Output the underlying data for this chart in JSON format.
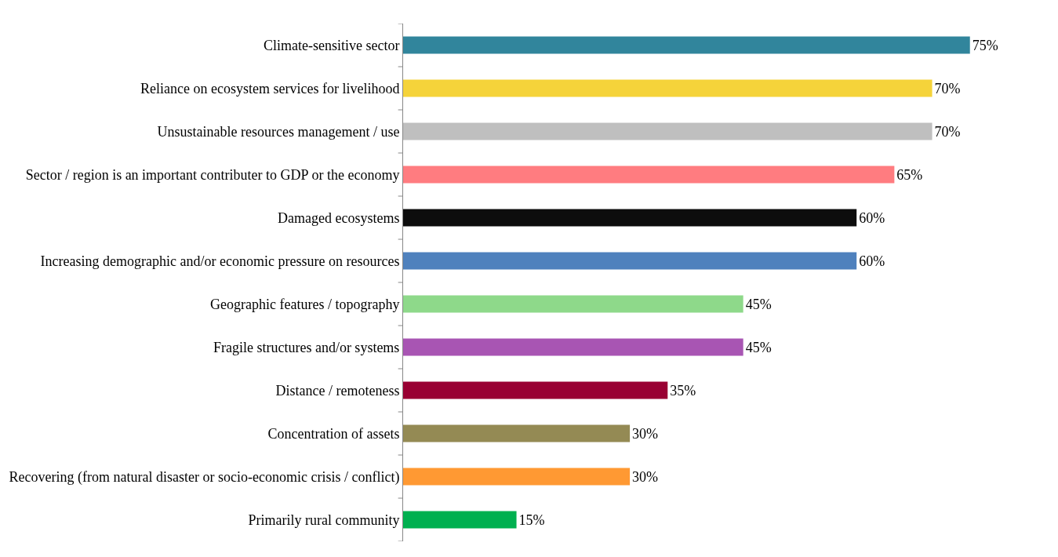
{
  "chart_data": {
    "type": "bar",
    "orientation": "horizontal",
    "categories": [
      "Climate-sensitive sector",
      "Reliance on ecosystem services for livelihood",
      "Unsustainable resources management / use",
      "Sector / region is an important contributer to GDP or the economy",
      "Damaged ecosystems",
      "Increasing demographic and/or economic pressure on resources",
      "Geographic features / topography",
      "Fragile structures and/or systems",
      "Distance / remoteness",
      "Concentration of assets",
      "Recovering (from natural disaster or socio-economic crisis / conflict)",
      "Primarily rural community"
    ],
    "values": [
      75,
      70,
      70,
      65,
      60,
      60,
      45,
      45,
      35,
      30,
      30,
      15
    ],
    "value_labels": [
      "75%",
      "70%",
      "70%",
      "65%",
      "60%",
      "60%",
      "45%",
      "45%",
      "35%",
      "30%",
      "30%",
      "15%"
    ],
    "colors": [
      "#31859c",
      "#f5d33a",
      "#bfbfbf",
      "#ff7c80",
      "#0d0d0d",
      "#4f81bd",
      "#8ed98a",
      "#a855b3",
      "#990033",
      "#948a54",
      "#ff9933",
      "#00b050"
    ],
    "legend": false
  }
}
